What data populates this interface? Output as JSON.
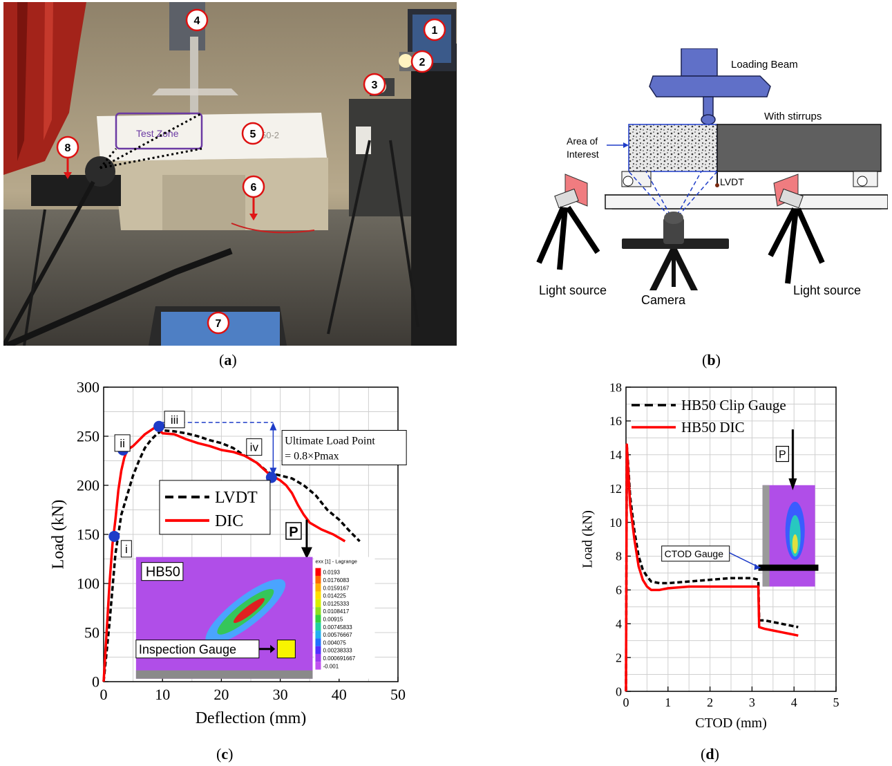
{
  "captions": {
    "a": "a",
    "b": "b",
    "c": "c",
    "d": "d"
  },
  "panel_a": {
    "markers": [
      "1",
      "2",
      "3",
      "4",
      "5",
      "6",
      "7",
      "8"
    ],
    "test_zone_label": "Test Zone",
    "specimen_label": "50-2"
  },
  "panel_b": {
    "loading_beam": "Loading Beam",
    "with_stirrups": "With stirrups",
    "area_of_interest_line1": "Area of",
    "area_of_interest_line2": "Interest",
    "lvdt": "LVDT",
    "light_source_left": "Light source",
    "light_source_right": "Light source",
    "camera": "Camera"
  },
  "panel_c": {
    "point_labels": [
      "i",
      "ii",
      "iii",
      "iv"
    ],
    "ultimate_line1": "Ultimate Load Point",
    "ultimate_line2": "= 0.8×Pmax",
    "inset_title": "HB50",
    "inset_gauge": "Inspection Gauge",
    "inset_legend_title": "exx [1] - Lagrange",
    "inset_legend_values": [
      "0.0193",
      "0.0176083",
      "0.0159167",
      "0.014225",
      "0.0125333",
      "0.0108417",
      "0.00915",
      "0.00745833",
      "0.00576667",
      "0.004075",
      "0.00238333",
      "0.000691667",
      "-0.001"
    ],
    "load_marker": "P"
  },
  "panel_d": {
    "cto_gauge": "CTOD Gauge",
    "load_marker": "P"
  },
  "chart_data": [
    {
      "type": "line",
      "xlabel": "Deflection (mm)",
      "ylabel": "Load (kN)",
      "xlim": [
        0,
        50
      ],
      "ylim": [
        0,
        300
      ],
      "xticks": [
        0,
        10,
        20,
        30,
        40,
        50
      ],
      "yticks": [
        0,
        50,
        100,
        150,
        200,
        250,
        300
      ],
      "grid": true,
      "legend": "middle",
      "series": [
        {
          "name": "LVDT",
          "color": "#000000",
          "dash": true,
          "x": [
            0,
            1,
            2,
            3,
            4,
            5,
            6,
            7,
            8,
            9,
            10,
            12,
            14,
            16,
            18,
            20,
            22,
            24,
            26,
            28,
            30,
            32,
            34,
            36,
            38,
            40,
            42,
            43.5
          ],
          "y": [
            0,
            60,
            130,
            170,
            190,
            210,
            225,
            238,
            246,
            252,
            256,
            255,
            253,
            250,
            246,
            243,
            238,
            230,
            223,
            213,
            210,
            207,
            200,
            190,
            175,
            165,
            152,
            143
          ]
        },
        {
          "name": "DIC",
          "color": "#ff0000",
          "dash": false,
          "x": [
            0,
            0.5,
            1,
            1.5,
            2,
            2.5,
            3,
            3.5,
            4,
            5,
            6,
            7,
            8,
            9,
            10,
            12,
            14,
            16,
            18,
            20,
            22,
            24,
            26,
            28,
            30,
            31,
            32,
            33,
            34,
            35,
            37,
            39,
            41
          ],
          "y": [
            0,
            50,
            100,
            140,
            165,
            195,
            215,
            228,
            236,
            240,
            246,
            252,
            256,
            260,
            253,
            252,
            247,
            243,
            240,
            236,
            234,
            230,
            223,
            212,
            205,
            200,
            192,
            180,
            170,
            162,
            155,
            150,
            143
          ]
        }
      ],
      "points": [
        {
          "label": "i",
          "x": 1.8,
          "y": 148
        },
        {
          "label": "ii",
          "x": 3.3,
          "y": 236
        },
        {
          "label": "iii",
          "x": 9.4,
          "y": 260
        },
        {
          "label": "iv",
          "x": 28.5,
          "y": 208
        }
      ]
    },
    {
      "type": "line",
      "xlabel": "CTOD (mm)",
      "ylabel": "Load (kN)",
      "xlim": [
        0,
        5
      ],
      "ylim": [
        0,
        18
      ],
      "xticks": [
        0,
        1,
        2,
        3,
        4,
        5
      ],
      "yticks": [
        0,
        2,
        4,
        6,
        8,
        10,
        12,
        14,
        16,
        18
      ],
      "grid": true,
      "legend": "top-left",
      "series": [
        {
          "name": "HB50 Clip Gauge",
          "color": "#000000",
          "dash": true,
          "x": [
            0,
            0.02,
            0.05,
            0.1,
            0.2,
            0.3,
            0.4,
            0.5,
            0.6,
            0.8,
            1.0,
            1.5,
            2.0,
            2.5,
            3.0,
            3.15,
            3.17,
            3.3,
            3.5,
            3.7,
            3.9,
            4.1
          ],
          "y": [
            0,
            14.5,
            13.5,
            11.5,
            9.5,
            8.0,
            7.2,
            6.8,
            6.5,
            6.4,
            6.4,
            6.5,
            6.6,
            6.7,
            6.7,
            6.6,
            4.2,
            4.2,
            4.1,
            4.0,
            3.9,
            3.8
          ]
        },
        {
          "name": "HB50 DIC",
          "color": "#ff0000",
          "dash": false,
          "x": [
            0,
            0.02,
            0.05,
            0.1,
            0.2,
            0.3,
            0.4,
            0.5,
            0.6,
            0.8,
            1.0,
            1.5,
            2.0,
            2.5,
            3.0,
            3.15,
            3.17,
            3.3,
            3.5,
            3.7,
            3.9,
            4.1
          ],
          "y": [
            0,
            14.6,
            13.2,
            11.0,
            9.0,
            7.4,
            6.6,
            6.2,
            6.0,
            6.0,
            6.1,
            6.2,
            6.2,
            6.2,
            6.2,
            6.2,
            3.8,
            3.7,
            3.6,
            3.5,
            3.4,
            3.3
          ]
        }
      ]
    }
  ],
  "colors": {
    "accent_red": "#ff0000",
    "beam_blue": "#6070c8",
    "concrete": "#606060",
    "purple_field": "#b04ee8"
  }
}
